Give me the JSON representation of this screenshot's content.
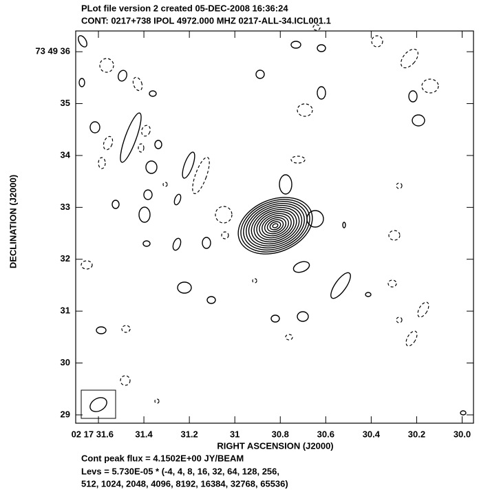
{
  "chart_data": {
    "type": "contour",
    "title": "PLot file version 2  created 05-DEC-2008 16:36:24",
    "subtitle": "CONT: 0217+738  IPOL  4972.000 MHZ  0217-ALL-34.ICL001.1",
    "x_label": "RIGHT ASCENSION (J2000)",
    "y_label": "DECLINATION (J2000)",
    "xlim": [
      31.7,
      29.95
    ],
    "xticks": [
      {
        "value": 31.6,
        "label": "02 17 31.6"
      },
      31.4,
      31.2,
      31.0,
      30.8,
      30.6,
      30.4,
      30.2,
      {
        "value": 30,
        "label": "30.0"
      }
    ],
    "ylim": [
      28.84,
      36.4
    ],
    "yticks": [
      {
        "value": 36,
        "label": "73 49 36"
      },
      35,
      34,
      33,
      32,
      31,
      30,
      29
    ],
    "annotations": [
      "Cont peak flux =  4.1502E+00 JY/BEAM",
      "Levs = 5.730E-05 * (-4, 4, 8, 16, 32, 64, 128, 256,",
      "512, 1024, 2048, 4096, 8192, 16384, 32768, 65536)"
    ]
  }
}
